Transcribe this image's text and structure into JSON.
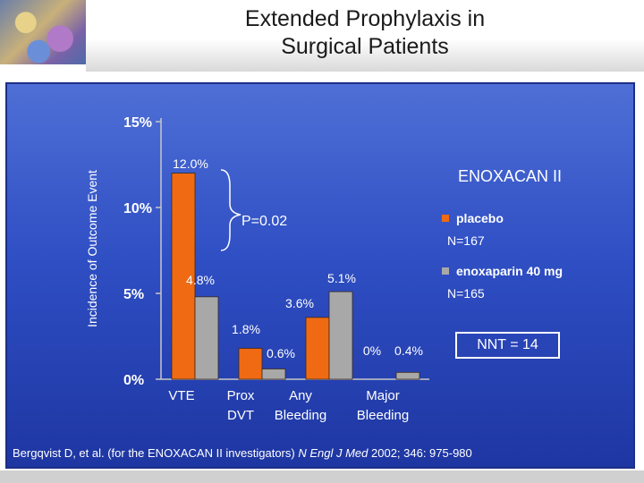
{
  "slide": {
    "title_line1": "Extended Prophylaxis in",
    "title_line2": "Surgical Patients",
    "nnt": "NNT = 14",
    "citation_pre": "Bergqvist D, et al. (for the ENOXACAN II investigators) ",
    "citation_journal": "N Engl J Med",
    "citation_post": " 2002; 346: 975-980"
  },
  "colors": {
    "placebo": "#f06a14",
    "enoxaparin": "#a8a8a8",
    "panel": "#2f4fc4",
    "text": "#ffffff"
  },
  "chart_data": {
    "type": "bar",
    "title": "ENOXACAN II",
    "ylabel": "Incidence of Outcome Event",
    "xlabel": "",
    "ylim": [
      0,
      15
    ],
    "yticks": [
      0,
      5,
      10,
      15
    ],
    "ytick_labels": [
      "0%",
      "5%",
      "10%",
      "15%"
    ],
    "grid": false,
    "legend_position": "right",
    "categories": [
      [
        "VTE"
      ],
      [
        "Prox",
        "DVT"
      ],
      [
        "Any",
        "Bleeding"
      ],
      [
        "Major",
        "Bleeding"
      ]
    ],
    "series": [
      {
        "name": "placebo",
        "n_label": "N=167",
        "values": [
          12.0,
          1.8,
          3.6,
          0.0
        ],
        "labels": [
          "12.0%",
          "1.8%",
          "3.6%",
          "0%"
        ]
      },
      {
        "name": "enoxaparin 40 mg",
        "n_label": "N=165",
        "values": [
          4.8,
          0.6,
          5.1,
          0.4
        ],
        "labels": [
          "4.8%",
          "0.6%",
          "5.1%",
          "0.4%"
        ]
      }
    ],
    "annotations": [
      {
        "text": "P=0.02"
      }
    ]
  }
}
